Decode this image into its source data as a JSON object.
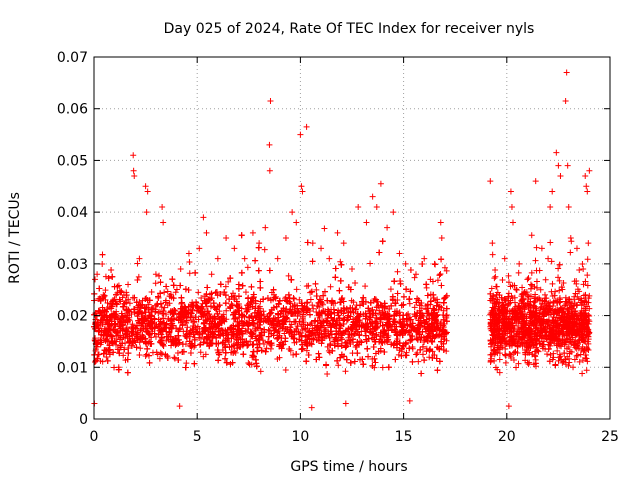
{
  "colors": {
    "series": "#ff0000",
    "grid": "#a0a0a0",
    "axis": "#000000",
    "background": "#ffffff"
  },
  "chart_data": {
    "type": "scatter",
    "title": "Day 025 of 2024, Rate Of TEC Index for receiver nyls",
    "xlabel": "GPS time / hours",
    "ylabel": "ROTI / TECUs",
    "xlim": [
      0,
      25
    ],
    "ylim": [
      0,
      0.07
    ],
    "x_ticks": [
      0,
      5,
      10,
      15,
      20,
      25
    ],
    "x_tick_labels": [
      "0",
      "5",
      "10",
      "15",
      "20",
      "25"
    ],
    "y_ticks": [
      0,
      0.01,
      0.02,
      0.03,
      0.04,
      0.05,
      0.06,
      0.07
    ],
    "y_tick_labels": [
      "0",
      "0.01",
      "0.02",
      "0.03",
      "0.04",
      "0.05",
      "0.06",
      "0.07"
    ],
    "grid": true,
    "marker": "+",
    "series": [
      {
        "name": "ROTI",
        "gaps": [
          [
            17.1,
            19.2
          ]
        ],
        "points": [
          [
            0.05,
            0.027
          ],
          [
            0.15,
            0.028
          ],
          [
            0.3,
            0.018
          ],
          [
            0.6,
            0.012
          ],
          [
            0.9,
            0.015
          ],
          [
            1.2,
            0.01
          ],
          [
            1.45,
            0.024
          ],
          [
            1.65,
            0.026
          ],
          [
            1.9,
            0.051
          ],
          [
            1.92,
            0.048
          ],
          [
            1.95,
            0.047
          ],
          [
            2.2,
            0.031
          ],
          [
            2.5,
            0.045
          ],
          [
            2.6,
            0.044
          ],
          [
            2.55,
            0.04
          ],
          [
            3.0,
            0.028
          ],
          [
            3.3,
            0.041
          ],
          [
            3.35,
            0.038
          ],
          [
            3.8,
            0.027
          ],
          [
            4.2,
            0.029
          ],
          [
            4.6,
            0.032
          ],
          [
            5.1,
            0.033
          ],
          [
            5.3,
            0.039
          ],
          [
            5.45,
            0.036
          ],
          [
            5.7,
            0.028
          ],
          [
            6.0,
            0.031
          ],
          [
            6.4,
            0.035
          ],
          [
            6.8,
            0.033
          ],
          [
            7.3,
            0.031
          ],
          [
            7.7,
            0.036
          ],
          [
            8.0,
            0.034
          ],
          [
            8.3,
            0.037
          ],
          [
            8.55,
            0.0615
          ],
          [
            8.5,
            0.053
          ],
          [
            8.52,
            0.048
          ],
          [
            8.9,
            0.031
          ],
          [
            9.3,
            0.035
          ],
          [
            9.6,
            0.04
          ],
          [
            9.8,
            0.038
          ],
          [
            10.0,
            0.055
          ],
          [
            10.05,
            0.045
          ],
          [
            10.1,
            0.044
          ],
          [
            10.3,
            0.0565
          ],
          [
            10.6,
            0.034
          ],
          [
            11.0,
            0.033
          ],
          [
            11.4,
            0.031
          ],
          [
            11.8,
            0.036
          ],
          [
            12.1,
            0.034
          ],
          [
            12.5,
            0.029
          ],
          [
            12.8,
            0.041
          ],
          [
            13.2,
            0.038
          ],
          [
            13.5,
            0.043
          ],
          [
            13.7,
            0.041
          ],
          [
            13.9,
            0.0455
          ],
          [
            14.2,
            0.037
          ],
          [
            14.5,
            0.04
          ],
          [
            14.8,
            0.032
          ],
          [
            15.1,
            0.03
          ],
          [
            15.6,
            0.028
          ],
          [
            16.0,
            0.031
          ],
          [
            16.3,
            0.027
          ],
          [
            16.5,
            0.03
          ],
          [
            16.8,
            0.038
          ],
          [
            16.85,
            0.035
          ],
          [
            0.02,
            0.003
          ],
          [
            4.15,
            0.0025
          ],
          [
            10.55,
            0.0022
          ],
          [
            12.2,
            0.003
          ],
          [
            15.3,
            0.0035
          ],
          [
            19.2,
            0.046
          ],
          [
            19.3,
            0.034
          ],
          [
            19.9,
            0.031
          ],
          [
            20.2,
            0.044
          ],
          [
            20.25,
            0.041
          ],
          [
            20.3,
            0.038
          ],
          [
            20.1,
            0.0025
          ],
          [
            20.6,
            0.03
          ],
          [
            21.0,
            0.027
          ],
          [
            21.4,
            0.046
          ],
          [
            21.7,
            0.033
          ],
          [
            22.0,
            0.031
          ],
          [
            22.1,
            0.041
          ],
          [
            22.2,
            0.044
          ],
          [
            22.4,
            0.0515
          ],
          [
            22.5,
            0.049
          ],
          [
            22.6,
            0.047
          ],
          [
            22.9,
            0.067
          ],
          [
            22.85,
            0.0615
          ],
          [
            22.95,
            0.049
          ],
          [
            23.0,
            0.041
          ],
          [
            23.1,
            0.035
          ],
          [
            23.4,
            0.033
          ],
          [
            23.7,
            0.029
          ],
          [
            23.8,
            0.047
          ],
          [
            23.85,
            0.045
          ],
          [
            23.9,
            0.044
          ],
          [
            24.0,
            0.048
          ],
          [
            23.95,
            0.034
          ]
        ],
        "band": {
          "segments": [
            [
              0,
              17.1
            ],
            [
              19.2,
              24.0
            ]
          ],
          "base_mean": 0.0145,
          "lower_min": 0.004,
          "upper_typical": 0.025
        }
      }
    ]
  }
}
